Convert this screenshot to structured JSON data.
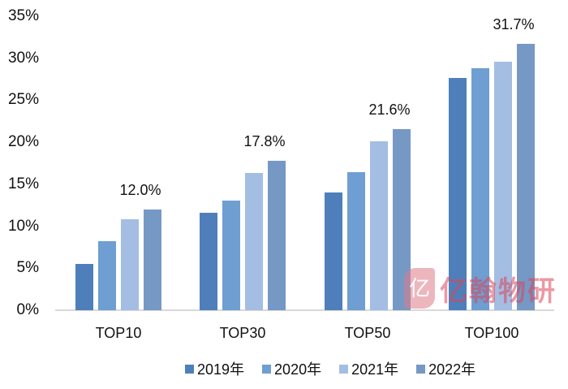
{
  "chart_data": {
    "type": "bar",
    "title": "",
    "xlabel": "",
    "ylabel": "",
    "ylim": [
      0,
      35
    ],
    "yticks": [
      "0%",
      "5%",
      "10%",
      "15%",
      "20%",
      "25%",
      "30%",
      "35%"
    ],
    "grid": false,
    "legend_position": "bottom",
    "categories": [
      "TOP10",
      "TOP30",
      "TOP50",
      "TOP100"
    ],
    "series": [
      {
        "name": "2019年",
        "color": "#4f7fbb",
        "values": [
          5.5,
          11.6,
          14.0,
          27.7
        ]
      },
      {
        "name": "2020年",
        "color": "#6e9ed2",
        "values": [
          8.2,
          13.1,
          16.4,
          28.8
        ]
      },
      {
        "name": "2021年",
        "color": "#a4bde3",
        "values": [
          10.8,
          16.3,
          20.1,
          29.6
        ]
      },
      {
        "name": "2022年",
        "color": "#7698c5",
        "values": [
          12.0,
          17.8,
          21.6,
          31.7
        ]
      }
    ],
    "data_labels": [
      {
        "category": "TOP10",
        "series": "2022年",
        "text": "12.0%"
      },
      {
        "category": "TOP30",
        "series": "2022年",
        "text": "17.8%"
      },
      {
        "category": "TOP50",
        "series": "2022年",
        "text": "21.6%"
      },
      {
        "category": "TOP100",
        "series": "2022年",
        "text": "31.7%"
      }
    ]
  },
  "watermark": {
    "text": "亿翰物研",
    "logo_glyph": "亿"
  }
}
